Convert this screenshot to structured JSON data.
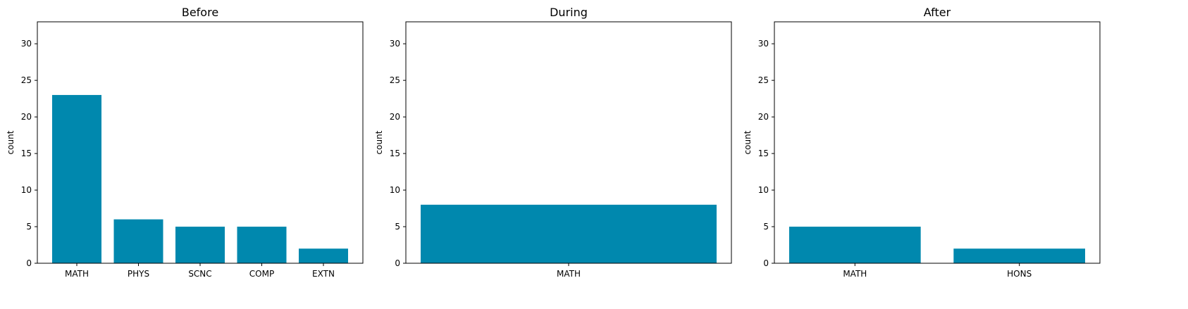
{
  "chart_data": [
    {
      "type": "bar",
      "title": "Before",
      "xlabel": "",
      "ylabel": "count",
      "categories": [
        "MATH",
        "PHYS",
        "SCNC",
        "COMP",
        "EXTN"
      ],
      "values": [
        23,
        6,
        5,
        5,
        2
      ],
      "ylim": [
        0,
        33
      ],
      "yticks": [
        0,
        5,
        10,
        15,
        20,
        25,
        30
      ],
      "bar_color": "#0088ae",
      "grid": false
    },
    {
      "type": "bar",
      "title": "During",
      "xlabel": "",
      "ylabel": "count",
      "categories": [
        "MATH"
      ],
      "values": [
        8
      ],
      "ylim": [
        0,
        33
      ],
      "yticks": [
        0,
        5,
        10,
        15,
        20,
        25,
        30
      ],
      "bar_color": "#0088ae",
      "grid": false
    },
    {
      "type": "bar",
      "title": "After",
      "xlabel": "",
      "ylabel": "count",
      "categories": [
        "MATH",
        "HONS"
      ],
      "values": [
        5,
        2
      ],
      "ylim": [
        0,
        33
      ],
      "yticks": [
        0,
        5,
        10,
        15,
        20,
        25,
        30
      ],
      "bar_color": "#0088ae",
      "grid": false
    }
  ]
}
